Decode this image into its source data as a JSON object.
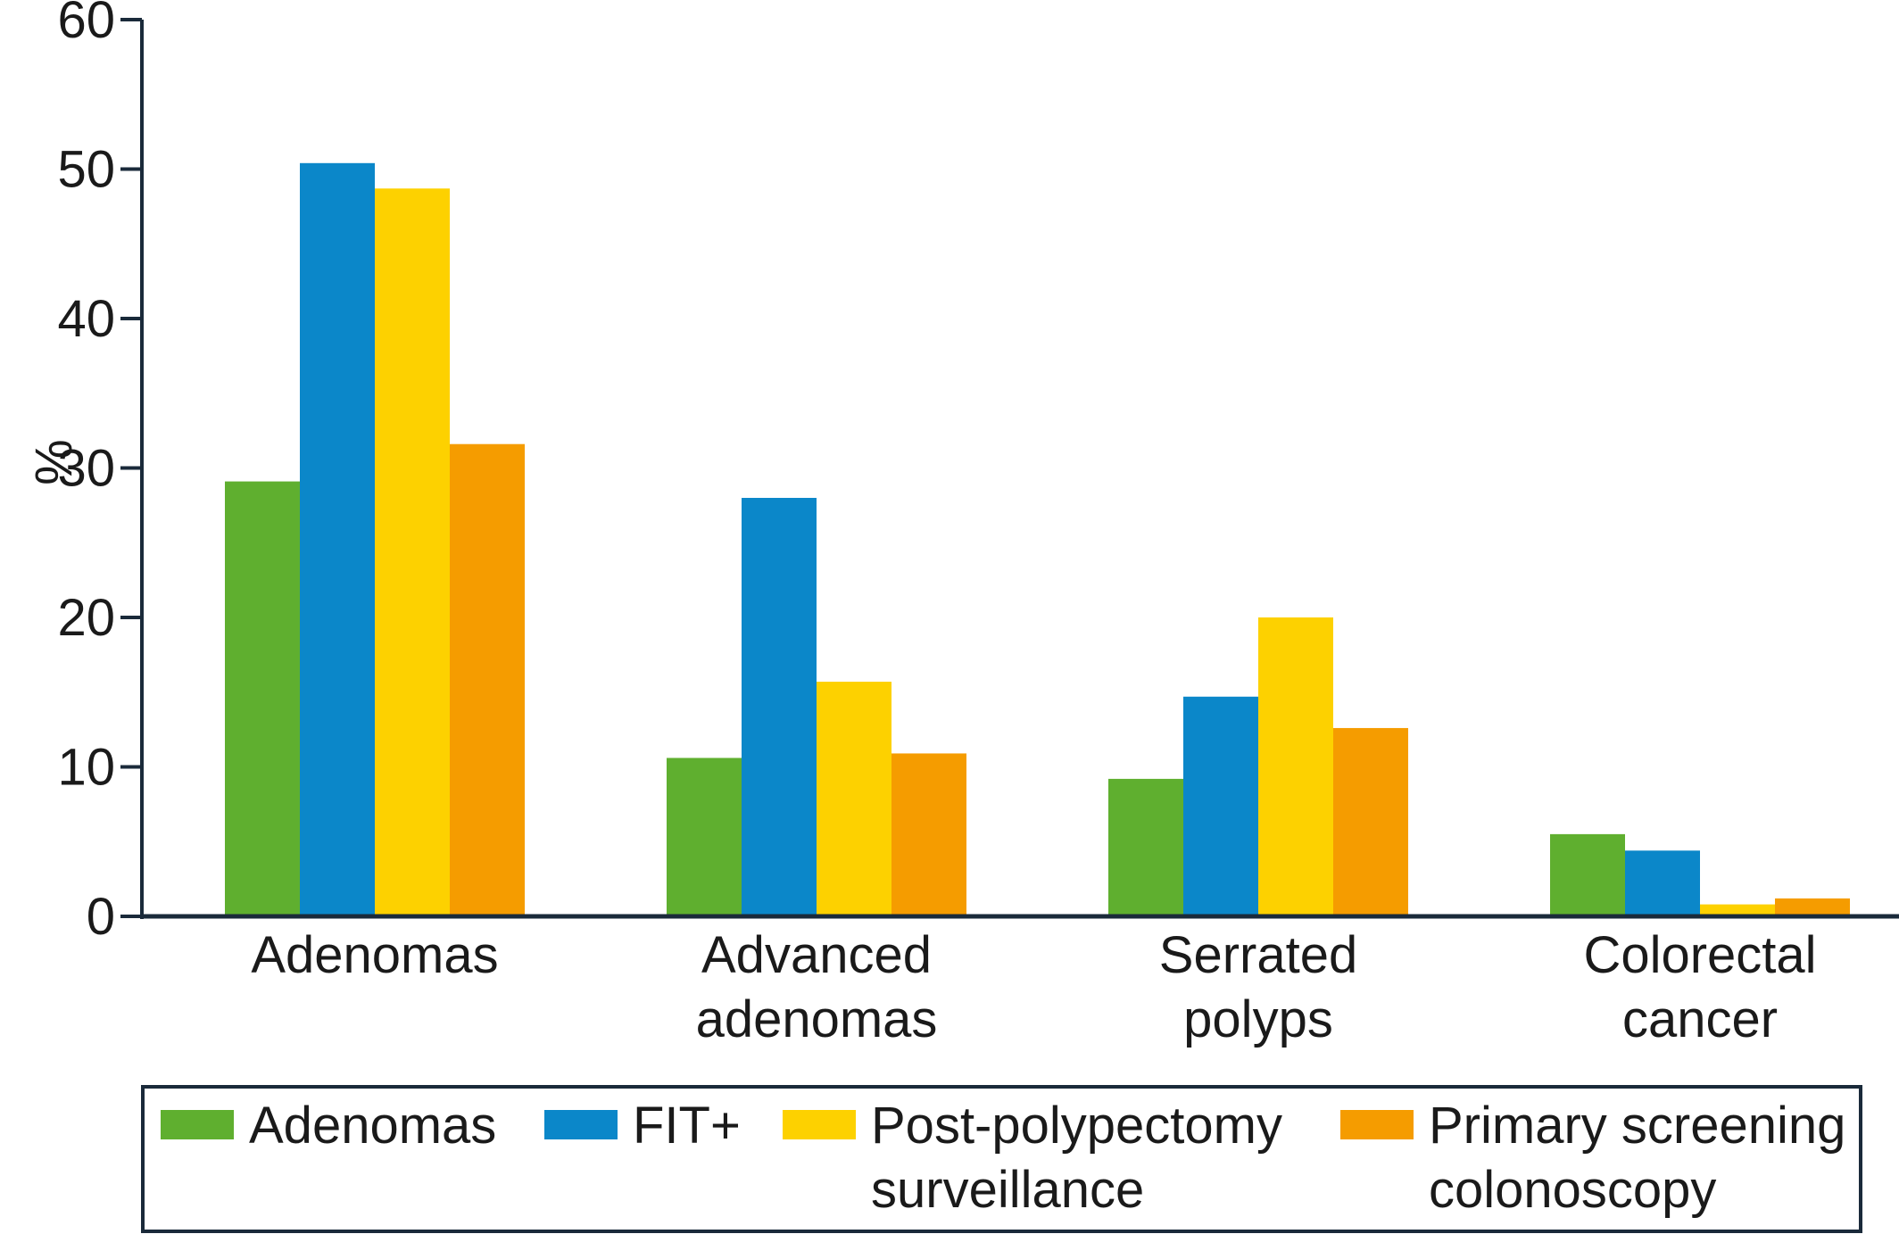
{
  "chart_data": {
    "type": "bar",
    "title": "",
    "xlabel": "",
    "ylabel": "%",
    "ylim": [
      0,
      60
    ],
    "yticks": [
      0,
      10,
      20,
      30,
      40,
      50,
      60
    ],
    "categories": [
      [
        "Adenomas"
      ],
      [
        "Advanced",
        "adenomas"
      ],
      [
        "Serrated",
        "polyps"
      ],
      [
        "Colorectal",
        "cancer"
      ]
    ],
    "series": [
      {
        "name": [
          "Adenomas"
        ],
        "color": "#5faf2f",
        "values": [
          29.1,
          10.6,
          9.2,
          5.5
        ]
      },
      {
        "name": [
          "FIT+"
        ],
        "color": "#0b87c9",
        "values": [
          50.4,
          28.0,
          14.7,
          4.4
        ]
      },
      {
        "name": [
          "Post-polypectomy",
          "surveillance"
        ],
        "color": "#fdd100",
        "values": [
          48.7,
          15.7,
          20.0,
          0.8
        ]
      },
      {
        "name": [
          "Primary screening",
          "colonoscopy"
        ],
        "color": "#f59c00",
        "values": [
          31.6,
          10.9,
          12.6,
          1.2
        ]
      }
    ],
    "grid": false,
    "legend_position": "bottom"
  }
}
